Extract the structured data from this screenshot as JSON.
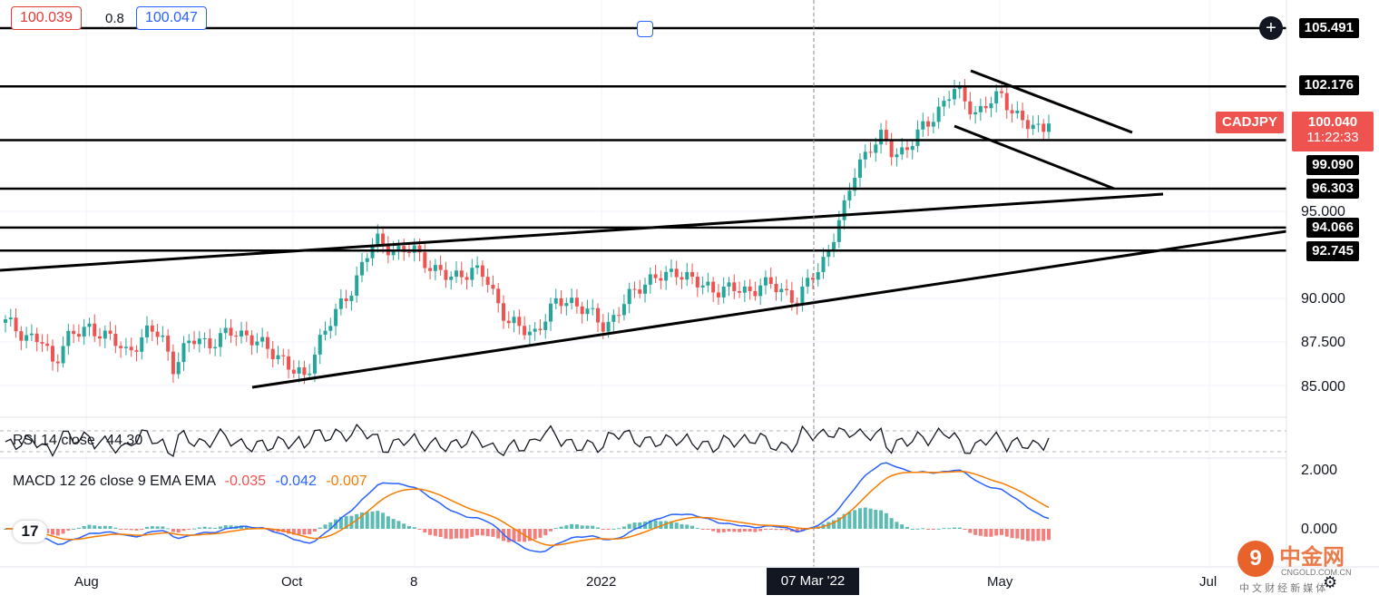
{
  "symbol": "CADJPY",
  "top_controls": {
    "bid": "100.039",
    "spread": "0.8",
    "ask": "100.047"
  },
  "price_labels": {
    "top_line": "105.491",
    "line_2": "102.176",
    "current_price": "100.040",
    "countdown": "11:22:33",
    "line_4": "99.090",
    "line_5": "96.303",
    "line_6": "94.066",
    "line_7": "92.745"
  },
  "y_ticks": [
    "95.000",
    "90.000",
    "87.500",
    "85.000"
  ],
  "x_ticks": [
    "Aug",
    "Oct",
    "8",
    "2022",
    "07 Mar '22",
    "May",
    "Jul"
  ],
  "rsi": {
    "label": "RSI 14 close",
    "value": "44.30"
  },
  "macd": {
    "label": "MACD 12 26 close 9 EMA EMA",
    "hist": "-0.035",
    "macd": "-0.042",
    "signal": "-0.007",
    "ticks": [
      "2.000",
      "0.000"
    ]
  },
  "watermark": {
    "brand": "中金网",
    "site": "CNGOLD.COM.CN",
    "tagline": "中 文 财 经 新 媒 体"
  },
  "colors": {
    "up": "#26a69a",
    "down": "#ef5350",
    "line": "#000000",
    "macd_line": "#2962ff",
    "signal_line": "#f57c00",
    "bid_red": "#e53935",
    "ask_blue": "#2962ff"
  },
  "chart_data": {
    "type": "candlestick",
    "symbol": "CADJPY",
    "x_range": [
      "2021-07",
      "2022-07"
    ],
    "ylim": [
      84,
      106
    ],
    "horizontal_levels": [
      105.491,
      102.176,
      99.09,
      96.303,
      94.066,
      92.745
    ],
    "current_price": 100.04,
    "closes": [
      88.6,
      88.2,
      87.8,
      87.5,
      86.2,
      87.8,
      87.9,
      88.3,
      88.1,
      87.5,
      86.9,
      87.5,
      88.1,
      87.9,
      86.1,
      87.1,
      87.8,
      87.4,
      87.7,
      88.1,
      88.0,
      87.4,
      87.0,
      86.7,
      85.8,
      85.3,
      87.5,
      88.5,
      89.6,
      90.8,
      92.3,
      93.3,
      93.0,
      92.6,
      92.8,
      92.2,
      91.5,
      91.1,
      91.5,
      91.6,
      91.2,
      89.9,
      88.6,
      88.2,
      88.0,
      88.9,
      89.7,
      90.0,
      89.5,
      88.9,
      88.4,
      89.2,
      90.0,
      90.8,
      91.3,
      91.1,
      91.6,
      91.3,
      90.6,
      90.5,
      90.7,
      90.4,
      90.3,
      91.0,
      90.6,
      90.3,
      90.0,
      90.9,
      91.8,
      93.6,
      95.2,
      97.6,
      98.7,
      99.2,
      98.3,
      98.6,
      99.3,
      100.1,
      101.1,
      102.0,
      101.3,
      100.7,
      101.2,
      101.6,
      100.9,
      100.0,
      99.6,
      100.04
    ],
    "rsi": {
      "period": 14,
      "last": 44.3
    },
    "macd": {
      "fast": 12,
      "slow": 26,
      "signal": 9,
      "hist_last": -0.035,
      "macd_last": -0.042,
      "signal_last": -0.007,
      "ylim": [
        -0.5,
        2.0
      ]
    },
    "xlabel": "",
    "ylabel": ""
  }
}
